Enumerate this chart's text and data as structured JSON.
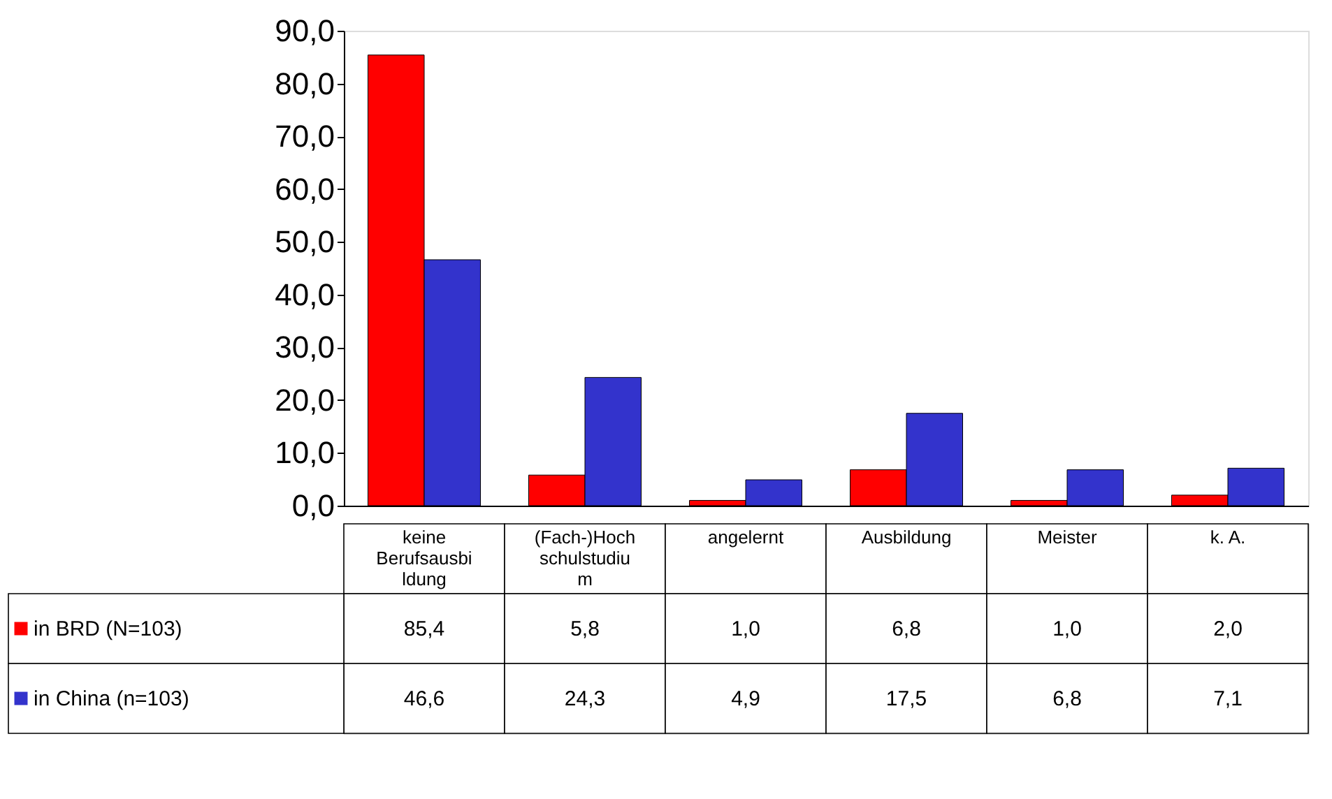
{
  "chart_data": {
    "type": "bar",
    "categories": [
      "keine Berufsausbildung",
      "(Fach-)Hochschulstudium",
      "angelernt",
      "Ausbildung",
      "Meister",
      "k. A."
    ],
    "series": [
      {
        "name": "in BRD (N=103)",
        "color": "#ff0000",
        "values": [
          85.4,
          5.8,
          1.0,
          6.8,
          1.0,
          2.0
        ],
        "value_labels": [
          "85,4",
          "5,8",
          "1,0",
          "6,8",
          "1,0",
          "2,0"
        ]
      },
      {
        "name": "in China (n=103)",
        "color": "#3333cc",
        "values": [
          46.6,
          24.3,
          4.9,
          17.5,
          6.8,
          7.1
        ],
        "value_labels": [
          "46,6",
          "24,3",
          "4,9",
          "17,5",
          "6,8",
          "7,1"
        ]
      }
    ],
    "ylim": [
      0,
      90
    ],
    "yticks": [
      {
        "value": 0,
        "label": "0,0"
      },
      {
        "value": 10,
        "label": "10,0"
      },
      {
        "value": 20,
        "label": "20,0"
      },
      {
        "value": 30,
        "label": "30,0"
      },
      {
        "value": 40,
        "label": "40,0"
      },
      {
        "value": 50,
        "label": "50,0"
      },
      {
        "value": 60,
        "label": "60,0"
      },
      {
        "value": 70,
        "label": "70,0"
      },
      {
        "value": 80,
        "label": "80,0"
      },
      {
        "value": 90,
        "label": "90,0"
      }
    ],
    "grid": false,
    "legend": "bottom left"
  }
}
